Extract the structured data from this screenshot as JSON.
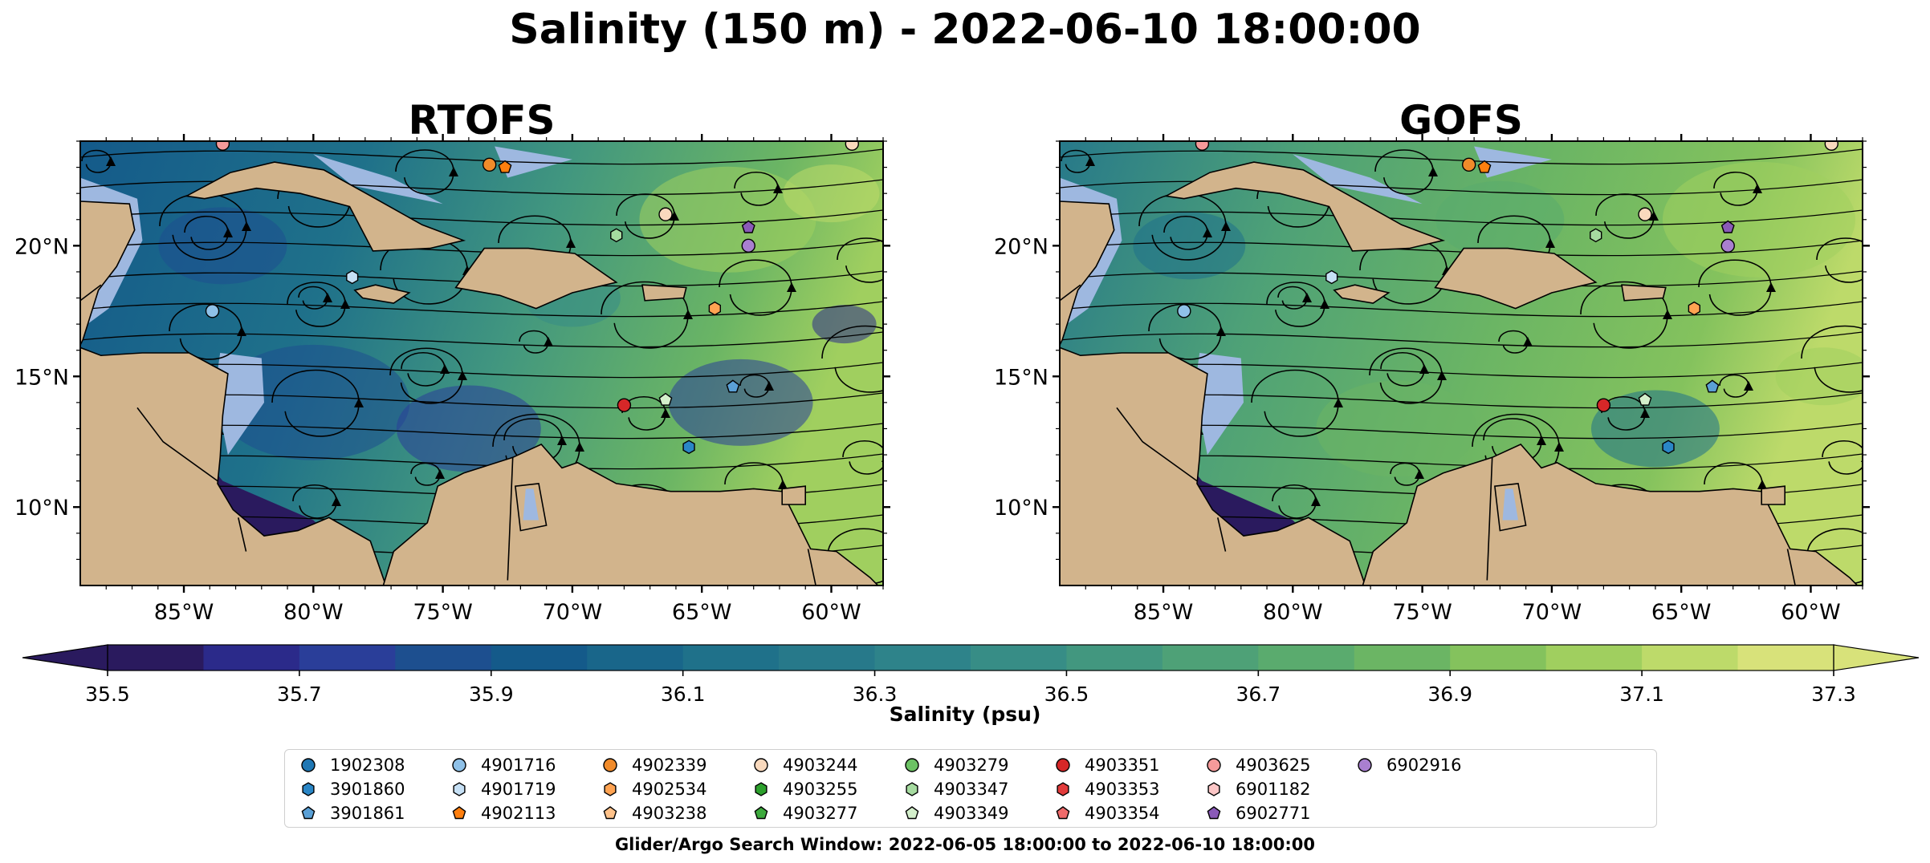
{
  "title": "Salinity (150 m) - 2022-06-10 18:00:00",
  "panels": [
    {
      "name": "RTOFS"
    },
    {
      "name": "GOFS"
    }
  ],
  "map": {
    "extent": {
      "lon": [
        -89,
        -58
      ],
      "lat": [
        7,
        24
      ]
    },
    "lon_ticks": [
      "85°W",
      "80°W",
      "75°W",
      "70°W",
      "65°W",
      "60°W"
    ],
    "lon_values": [
      -85,
      -80,
      -75,
      -70,
      -65,
      -60
    ],
    "lat_ticks": [
      "20°N",
      "15°N",
      "10°N"
    ],
    "lat_values": [
      20,
      15,
      10
    ],
    "colors": {
      "land": "#d2b48c",
      "ocean_shelf": "#9eb8e0",
      "border": "#000000"
    }
  },
  "colorbar": {
    "label": "Salinity (psu)",
    "min": 35.5,
    "max": 37.3,
    "tick_labels": [
      "35.5",
      "35.7",
      "35.9",
      "36.1",
      "36.3",
      "36.5",
      "36.7",
      "36.9",
      "37.1",
      "37.3"
    ],
    "tick_values": [
      35.5,
      35.7,
      35.9,
      36.1,
      36.3,
      36.5,
      36.7,
      36.9,
      37.1,
      37.3
    ],
    "levels": 18,
    "colors": [
      "#2a1a5e",
      "#2b2a8a",
      "#2a3e99",
      "#1d4f8f",
      "#145a8a",
      "#19668a",
      "#1f718a",
      "#27798a",
      "#2e838a",
      "#378d86",
      "#42977f",
      "#4ea177",
      "#5aab6e",
      "#6bb564",
      "#84c25d",
      "#a0cf5f",
      "#bdda6a",
      "#d8e27a"
    ]
  },
  "floats": [
    {
      "id": "1902308",
      "marker": "circle",
      "color": "#1f77b4"
    },
    {
      "id": "3901860",
      "marker": "hexagon",
      "color": "#2a86c6"
    },
    {
      "id": "3901861",
      "marker": "pentagon",
      "color": "#5aa0d6"
    },
    {
      "id": "4901716",
      "marker": "circle",
      "color": "#8fc1e8"
    },
    {
      "id": "4901719",
      "marker": "hexagon",
      "color": "#c6e0f5"
    },
    {
      "id": "4902113",
      "marker": "pentagon",
      "color": "#ff7f0e"
    },
    {
      "id": "4902339",
      "marker": "circle",
      "color": "#f18b2a"
    },
    {
      "id": "4902534",
      "marker": "hexagon",
      "color": "#ffa352"
    },
    {
      "id": "4903238",
      "marker": "pentagon",
      "color": "#ffc28a"
    },
    {
      "id": "4903244",
      "marker": "circle",
      "color": "#f9d9bd"
    },
    {
      "id": "4903255",
      "marker": "hexagon",
      "color": "#2ca02c"
    },
    {
      "id": "4903277",
      "marker": "pentagon",
      "color": "#3daa3d"
    },
    {
      "id": "4903279",
      "marker": "circle",
      "color": "#6cc264"
    },
    {
      "id": "4903347",
      "marker": "hexagon",
      "color": "#a6dba0"
    },
    {
      "id": "4903349",
      "marker": "pentagon",
      "color": "#d4f0cc"
    },
    {
      "id": "4903351",
      "marker": "circle",
      "color": "#d62728"
    },
    {
      "id": "4903353",
      "marker": "hexagon",
      "color": "#e23b3b"
    },
    {
      "id": "4903354",
      "marker": "pentagon",
      "color": "#ef6b6b"
    },
    {
      "id": "4903625",
      "marker": "circle",
      "color": "#f59a9a"
    },
    {
      "id": "6901182",
      "marker": "hexagon",
      "color": "#fcc6c6"
    },
    {
      "id": "6902771",
      "marker": "pentagon",
      "color": "#8a5ab8"
    },
    {
      "id": "6902916",
      "marker": "circle",
      "color": "#a97fd0"
    }
  ],
  "search_window": "Glider/Argo Search Window: 2022-06-05 18:00:00 to 2022-06-10 18:00:00"
}
